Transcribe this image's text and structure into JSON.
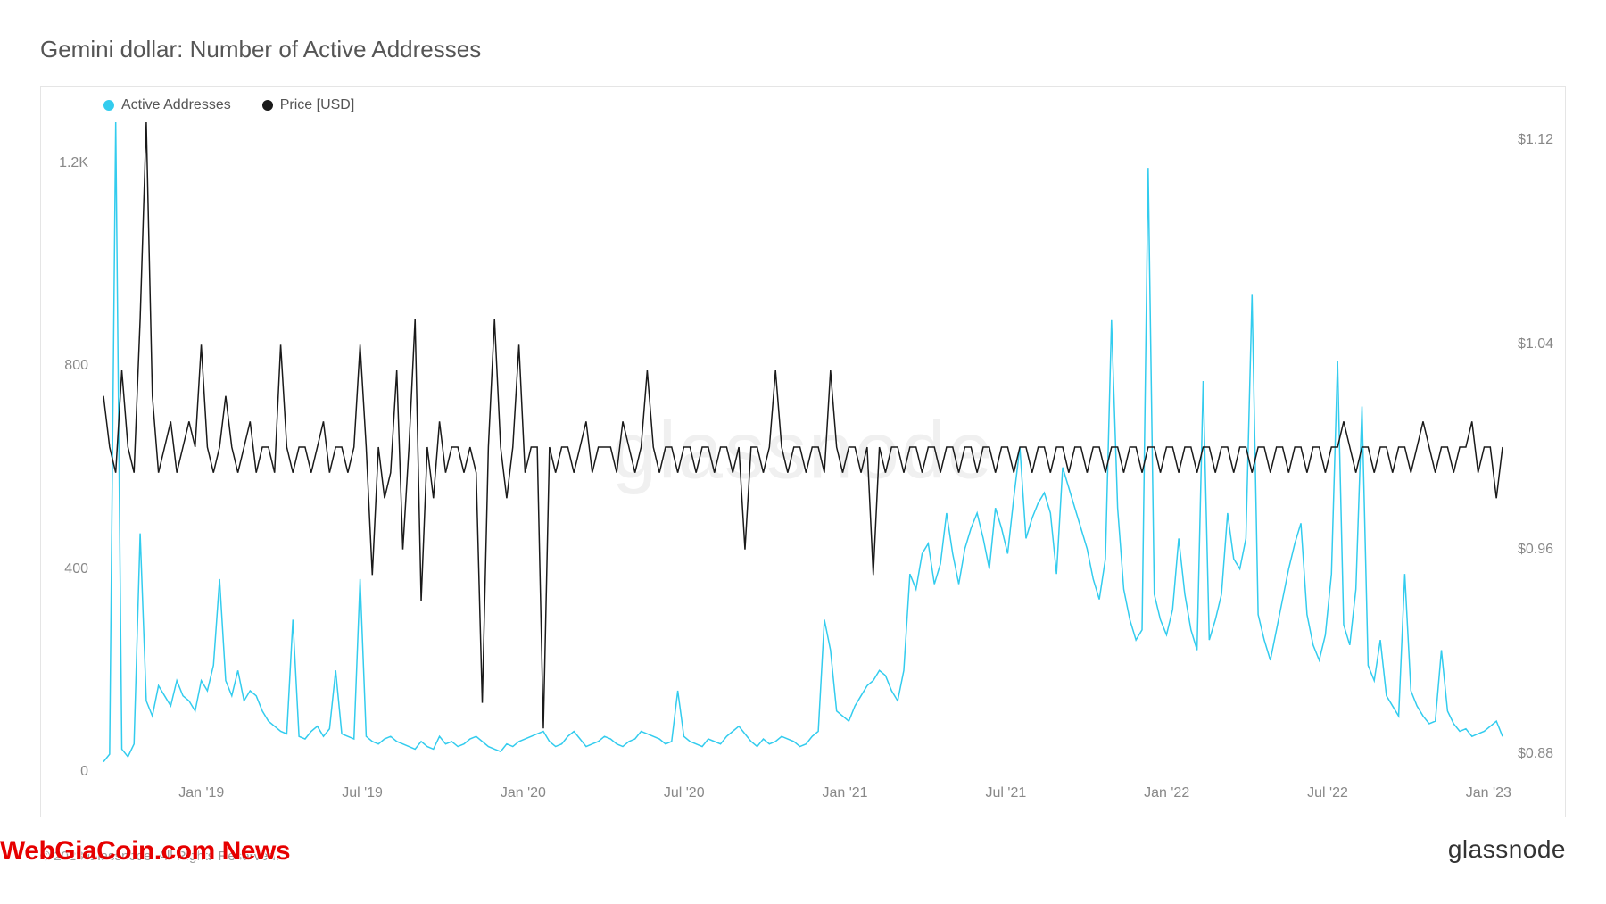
{
  "title": "Gemini dollar: Number of Active Addresses",
  "legend": {
    "series1": {
      "label": "Active Addresses",
      "color": "#33ccee"
    },
    "series2": {
      "label": "Price [USD]",
      "color": "#1a1a1a"
    }
  },
  "chart": {
    "type": "line",
    "background_color": "#ffffff",
    "border_color": "#e5e5e5",
    "watermark": "glassnode",
    "watermark_color": "#f0f0f0",
    "x_labels": [
      "Jan '19",
      "Jul '19",
      "Jan '20",
      "Jul '20",
      "Jan '21",
      "Jul '21",
      "Jan '22",
      "Jul '22",
      "Jan '23"
    ],
    "x_positions_pct": [
      7,
      18.5,
      30,
      41.5,
      53,
      64.5,
      76,
      87.5,
      99
    ],
    "y_left": {
      "ticks": [
        0,
        400,
        800,
        1200
      ],
      "labels": [
        "0",
        "400",
        "800",
        "1.2K"
      ],
      "min": 0,
      "max": 1280
    },
    "y_right": {
      "ticks": [
        0.88,
        0.96,
        1.04,
        1.12
      ],
      "labels": [
        "$0.88",
        "$0.96",
        "$1.04",
        "$1.12"
      ],
      "min": 0.873,
      "max": 1.127
    },
    "active_addresses": {
      "color": "#33ccee",
      "line_width": 1.5,
      "data": [
        20,
        35,
        1400,
        45,
        30,
        55,
        470,
        140,
        110,
        170,
        150,
        130,
        180,
        150,
        140,
        120,
        180,
        160,
        210,
        380,
        180,
        150,
        200,
        140,
        160,
        150,
        120,
        100,
        90,
        80,
        75,
        300,
        70,
        65,
        80,
        90,
        70,
        85,
        200,
        75,
        70,
        65,
        380,
        70,
        60,
        55,
        65,
        70,
        60,
        55,
        50,
        45,
        60,
        50,
        45,
        70,
        55,
        60,
        50,
        55,
        65,
        70,
        60,
        50,
        45,
        40,
        55,
        50,
        60,
        65,
        70,
        75,
        80,
        60,
        50,
        55,
        70,
        80,
        65,
        50,
        55,
        60,
        70,
        65,
        55,
        50,
        60,
        65,
        80,
        75,
        70,
        65,
        55,
        60,
        160,
        70,
        60,
        55,
        50,
        65,
        60,
        55,
        70,
        80,
        90,
        75,
        60,
        50,
        65,
        55,
        60,
        70,
        65,
        60,
        50,
        55,
        70,
        80,
        300,
        240,
        120,
        110,
        100,
        130,
        150,
        170,
        180,
        200,
        190,
        160,
        140,
        200,
        390,
        360,
        430,
        450,
        370,
        410,
        510,
        430,
        370,
        440,
        480,
        510,
        460,
        400,
        520,
        480,
        430,
        540,
        640,
        460,
        500,
        530,
        550,
        510,
        390,
        600,
        560,
        520,
        480,
        440,
        380,
        340,
        420,
        890,
        520,
        360,
        300,
        260,
        280,
        1190,
        350,
        300,
        270,
        320,
        460,
        350,
        280,
        240,
        770,
        260,
        300,
        350,
        510,
        420,
        400,
        460,
        940,
        310,
        260,
        220,
        280,
        340,
        400,
        450,
        490,
        310,
        250,
        220,
        270,
        390,
        810,
        290,
        250,
        360,
        720,
        210,
        180,
        260,
        150,
        130,
        110,
        390,
        160,
        130,
        110,
        95,
        100,
        240,
        120,
        95,
        80,
        85,
        70,
        75,
        80,
        90,
        100,
        70
      ]
    },
    "price_usd": {
      "color": "#1a1a1a",
      "line_width": 1.5,
      "data": [
        1.02,
        1.0,
        0.99,
        1.03,
        1.0,
        0.99,
        1.05,
        1.13,
        1.02,
        0.99,
        1.0,
        1.01,
        0.99,
        1.0,
        1.01,
        1.0,
        1.04,
        1.0,
        0.99,
        1.0,
        1.02,
        1.0,
        0.99,
        1.0,
        1.01,
        0.99,
        1.0,
        1.0,
        0.99,
        1.04,
        1.0,
        0.99,
        1.0,
        1.0,
        0.99,
        1.0,
        1.01,
        0.99,
        1.0,
        1.0,
        0.99,
        1.0,
        1.04,
        1.0,
        0.95,
        1.0,
        0.98,
        0.99,
        1.03,
        0.96,
        1.0,
        1.05,
        0.94,
        1.0,
        0.98,
        1.01,
        0.99,
        1.0,
        1.0,
        0.99,
        1.0,
        0.99,
        0.9,
        1.0,
        1.05,
        1.0,
        0.98,
        1.0,
        1.04,
        0.99,
        1.0,
        1.0,
        0.89,
        1.0,
        0.99,
        1.0,
        1.0,
        0.99,
        1.0,
        1.01,
        0.99,
        1.0,
        1.0,
        1.0,
        0.99,
        1.01,
        1.0,
        0.99,
        1.0,
        1.03,
        1.0,
        0.99,
        1.0,
        1.0,
        0.99,
        1.0,
        1.0,
        0.99,
        1.0,
        1.0,
        0.99,
        1.0,
        1.0,
        0.99,
        1.0,
        0.96,
        1.0,
        1.0,
        0.99,
        1.0,
        1.03,
        1.0,
        0.99,
        1.0,
        1.0,
        0.99,
        1.0,
        1.0,
        0.99,
        1.03,
        1.0,
        0.99,
        1.0,
        1.0,
        0.99,
        1.0,
        0.95,
        1.0,
        0.99,
        1.0,
        1.0,
        0.99,
        1.0,
        1.0,
        0.99,
        1.0,
        1.0,
        0.99,
        1.0,
        1.0,
        0.99,
        1.0,
        1.0,
        0.99,
        1.0,
        1.0,
        0.99,
        1.0,
        1.0,
        0.99,
        1.0,
        1.0,
        0.99,
        1.0,
        1.0,
        0.99,
        1.0,
        1.0,
        0.99,
        1.0,
        1.0,
        0.99,
        1.0,
        1.0,
        0.99,
        1.0,
        1.0,
        0.99,
        1.0,
        1.0,
        0.99,
        1.0,
        1.0,
        0.99,
        1.0,
        1.0,
        0.99,
        1.0,
        1.0,
        0.99,
        1.0,
        1.0,
        0.99,
        1.0,
        1.0,
        0.99,
        1.0,
        1.0,
        0.99,
        1.0,
        1.0,
        0.99,
        1.0,
        1.0,
        0.99,
        1.0,
        1.0,
        0.99,
        1.0,
        1.0,
        0.99,
        1.0,
        1.0,
        1.01,
        1.0,
        0.99,
        1.0,
        1.0,
        0.99,
        1.0,
        1.0,
        0.99,
        1.0,
        1.0,
        0.99,
        1.0,
        1.01,
        1.0,
        0.99,
        1.0,
        1.0,
        0.99,
        1.0,
        1.0,
        1.01,
        0.99,
        1.0,
        1.0,
        0.98,
        1.0
      ]
    }
  },
  "overlay_news": "WebGiaCoin.com News",
  "copyright": "© 2023 Glassnode. All Rights Reserved.",
  "brand": "glassnode"
}
